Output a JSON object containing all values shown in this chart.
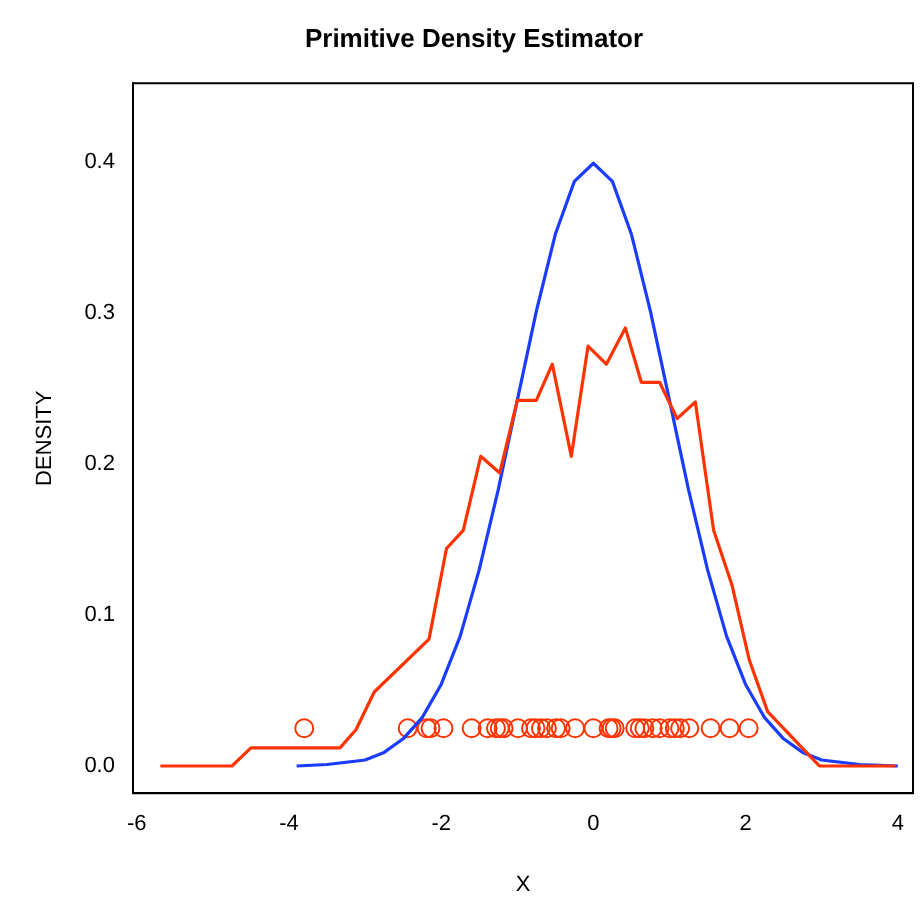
{
  "chart_data": {
    "type": "line",
    "title": "Primitive Density Estimator",
    "xlabel": "X",
    "ylabel": "DENSITY",
    "xlim": [
      -6.05,
      4.2
    ],
    "xticks": [
      -6,
      -4,
      -2,
      0,
      2,
      4
    ],
    "ylim": [
      -0.018,
      0.452
    ],
    "yticks": [
      {
        "value": 0,
        "label": "0.0"
      },
      0.1,
      0.2,
      0.3,
      0.4
    ],
    "grid": false,
    "legend": false,
    "line_style": "solid",
    "series": [
      {
        "color": "#ff3300",
        "marker": "none",
        "x": [
          -5.69,
          -4.75,
          -4.5,
          -3.33,
          -3.12,
          -2.88,
          -2.16,
          -1.93,
          -1.71,
          -1.48,
          -1.23,
          -1.0,
          -0.75,
          -0.54,
          -0.29,
          -0.07,
          0.17,
          0.42,
          0.63,
          0.87,
          1.1,
          1.34,
          1.58,
          1.82,
          2.05,
          2.29,
          2.97,
          3.97
        ],
        "values": [
          0,
          0,
          0.012,
          0.012,
          0.024,
          0.049,
          0.084,
          0.144,
          0.156,
          0.205,
          0.194,
          0.242,
          0.242,
          0.266,
          0.205,
          0.278,
          0.266,
          0.29,
          0.254,
          0.254,
          0.23,
          0.241,
          0.156,
          0.12,
          0.07,
          0.036,
          0,
          0
        ]
      },
      {
        "color": "#1a3cff",
        "marker": "none",
        "x": [
          -3.9,
          -3.5,
          -3.0,
          -2.75,
          -2.5,
          -2.25,
          -2.0,
          -1.75,
          -1.5,
          -1.25,
          -1.0,
          -0.75,
          -0.5,
          -0.25,
          0,
          0.25,
          0.5,
          0.75,
          1.0,
          1.25,
          1.5,
          1.75,
          2.0,
          2.25,
          2.5,
          2.75,
          3.0,
          3.5,
          4.0
        ],
        "values": [
          0.0,
          0.001,
          0.004,
          0.009,
          0.018,
          0.032,
          0.054,
          0.086,
          0.13,
          0.183,
          0.242,
          0.301,
          0.352,
          0.387,
          0.399,
          0.387,
          0.352,
          0.301,
          0.242,
          0.183,
          0.13,
          0.086,
          0.054,
          0.032,
          0.018,
          0.009,
          0.004,
          0.001,
          0.0
        ]
      },
      {
        "type": "scatter",
        "color": "#ff3300",
        "marker": "circle",
        "x": [
          -3.8,
          -2.44,
          -2.19,
          -2.14,
          -1.97,
          -1.6,
          -1.39,
          -1.28,
          -1.23,
          -1.18,
          -0.99,
          -0.82,
          -0.76,
          -0.69,
          -0.61,
          -0.49,
          -0.43,
          -0.24,
          0.0,
          0.2,
          0.24,
          0.28,
          0.55,
          0.61,
          0.67,
          0.78,
          0.87,
          1.0,
          1.07,
          1.14,
          1.26,
          1.54,
          1.79,
          2.04
        ],
        "values": [
          0.025,
          0.025,
          0.025,
          0.025,
          0.025,
          0.025,
          0.025,
          0.025,
          0.025,
          0.025,
          0.025,
          0.025,
          0.025,
          0.025,
          0.025,
          0.025,
          0.025,
          0.025,
          0.025,
          0.025,
          0.025,
          0.025,
          0.025,
          0.025,
          0.025,
          0.025,
          0.025,
          0.025,
          0.025,
          0.025,
          0.025,
          0.025,
          0.025,
          0.025
        ]
      }
    ]
  }
}
